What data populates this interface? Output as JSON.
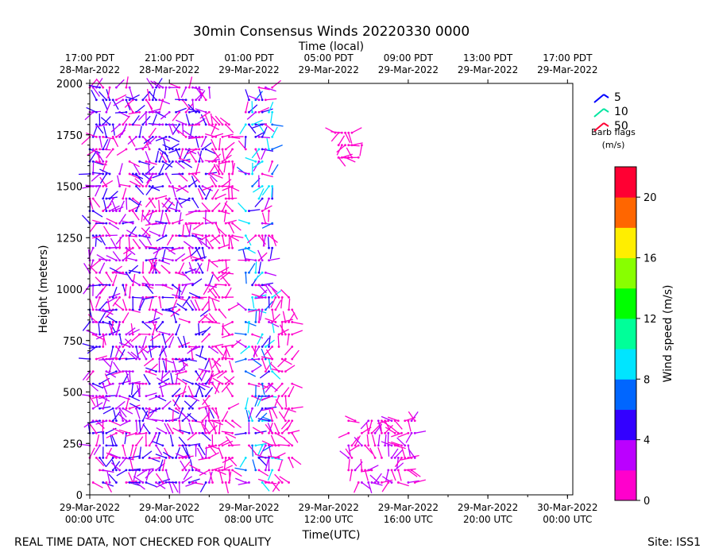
{
  "chart_data": {
    "type": "scatter",
    "title": "30min Consensus Winds 20220330 0000",
    "top_axis_label": "Time (local)",
    "xlabel": "Time(UTC)",
    "ylabel": "Height (meters)",
    "xlim_hours_utc": [
      0,
      72.8
    ],
    "ylim": [
      0,
      2000
    ],
    "yticks": [
      "0",
      "250",
      "500",
      "750",
      "1000",
      "1250",
      "1500",
      "1750",
      "2000"
    ],
    "bottom_ticks": [
      {
        "hour": 0,
        "l1": "29-Mar-2022",
        "l2": "00:00 UTC"
      },
      {
        "hour": 12,
        "l1": "29-Mar-2022",
        "l2": "04:00 UTC"
      },
      {
        "hour": 24,
        "l1": "29-Mar-2022",
        "l2": "08:00 UTC"
      },
      {
        "hour": 36,
        "l1": "29-Mar-2022",
        "l2": "12:00 UTC"
      },
      {
        "hour": 48,
        "l1": "29-Mar-2022",
        "l2": "16:00 UTC"
      },
      {
        "hour": 60,
        "l1": "29-Mar-2022",
        "l2": "20:00 UTC"
      },
      {
        "hour": 72,
        "l1": "30-Mar-2022",
        "l2": "00:00 UTC"
      }
    ],
    "top_ticks": [
      {
        "hour": 0,
        "l1": "17:00 PDT",
        "l2": "28-Mar-2022"
      },
      {
        "hour": 12,
        "l1": "21:00 PDT",
        "l2": "28-Mar-2022"
      },
      {
        "hour": 24,
        "l1": "01:00 PDT",
        "l2": "29-Mar-2022"
      },
      {
        "hour": 36,
        "l1": "05:00 PDT",
        "l2": "29-Mar-2022"
      },
      {
        "hour": 48,
        "l1": "09:00 PDT",
        "l2": "29-Mar-2022"
      },
      {
        "hour": 60,
        "l1": "13:00 PDT",
        "l2": "29-Mar-2022"
      },
      {
        "hour": 72,
        "l1": "17:00 PDT",
        "l2": "29-Mar-2022"
      }
    ],
    "barb_legend": {
      "entries": [
        {
          "label": "5",
          "color": "#0000ff"
        },
        {
          "label": "10",
          "color": "#00e5a0"
        },
        {
          "label": "50",
          "color": "#ff0033"
        }
      ],
      "title_line1": "Barb flags",
      "title_line2": "(m/s)"
    },
    "colorbar": {
      "label": "Wind speed (m/s)",
      "range": [
        0,
        22
      ],
      "ticks": [
        "0",
        "4",
        "8",
        "12",
        "16",
        "20"
      ],
      "colors": [
        "#ff00cc",
        "#bb00ff",
        "#3300ff",
        "#0066ff",
        "#00e5ff",
        "#00ff99",
        "#00ff00",
        "#88ff00",
        "#ffee00",
        "#ff6600",
        "#ff0033"
      ]
    },
    "series": [
      {
        "time_range": [
          0,
          18
        ],
        "height_range": [
          60,
          2000
        ],
        "speed_range": [
          0,
          6
        ]
      },
      {
        "time_range": [
          18,
          21.5
        ],
        "height_range": [
          60,
          1800
        ],
        "speed_range": [
          0,
          2
        ]
      },
      {
        "time_range": [
          23.5,
          27.5
        ],
        "height_range": [
          60,
          2000
        ],
        "speed_range": [
          0,
          10
        ]
      },
      {
        "time_range": [
          27.5,
          30.5
        ],
        "height_range": [
          60,
          960
        ],
        "speed_range": [
          0,
          2
        ]
      },
      {
        "time_range": [
          37,
          41
        ],
        "height_range": [
          1640,
          1790
        ],
        "speed_range": [
          0,
          2
        ]
      },
      {
        "time_range": [
          39,
          49
        ],
        "height_range": [
          60,
          390
        ],
        "speed_range": [
          0,
          4
        ]
      }
    ],
    "footer_left": "REAL TIME DATA, NOT CHECKED FOR QUALITY",
    "footer_right": "Site: ISS1"
  }
}
